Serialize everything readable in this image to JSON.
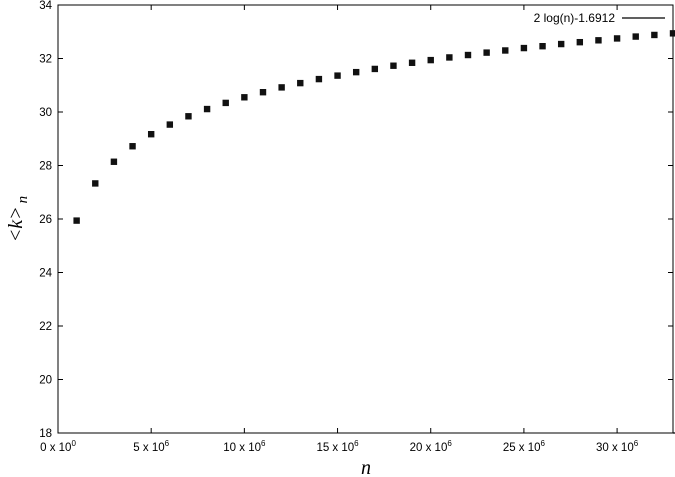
{
  "chart_data": {
    "type": "line",
    "title": "",
    "xlabel": "n",
    "ylabel": "<k>",
    "ylabel_subscript": "n",
    "xlim": [
      0,
      33000000
    ],
    "ylim": [
      18,
      34
    ],
    "y_ticks": [
      18,
      20,
      22,
      24,
      26,
      28,
      30,
      32,
      34
    ],
    "x_ticks": [
      {
        "value": 0,
        "mantissa": "0",
        "exponent": "0"
      },
      {
        "value": 5000000,
        "mantissa": "5",
        "exponent": "6"
      },
      {
        "value": 10000000,
        "mantissa": "10",
        "exponent": "6"
      },
      {
        "value": 15000000,
        "mantissa": "15",
        "exponent": "6"
      },
      {
        "value": 20000000,
        "mantissa": "20",
        "exponent": "6"
      },
      {
        "value": 25000000,
        "mantissa": "25",
        "exponent": "6"
      },
      {
        "value": 30000000,
        "mantissa": "30",
        "exponent": "6"
      }
    ],
    "grid": false,
    "legend_position": "top-right",
    "fit_line": {
      "name": "2 log(n)-1.6912",
      "coef": 2,
      "offset": -1.6912,
      "x_start": 10000000
    },
    "series": [
      {
        "marker": "square",
        "x": [
          1000000,
          2000000,
          3000000,
          4000000,
          5000000,
          6000000,
          7000000,
          8000000,
          9000000,
          10000000,
          11000000,
          12000000,
          13000000,
          14000000,
          15000000,
          16000000,
          17000000,
          18000000,
          19000000,
          20000000,
          21000000,
          22000000,
          23000000,
          24000000,
          25000000,
          26000000,
          27000000,
          28000000,
          29000000,
          30000000,
          31000000,
          32000000,
          33000000
        ],
        "y": [
          25.94,
          27.33,
          28.14,
          28.72,
          29.17,
          29.53,
          29.84,
          30.11,
          30.34,
          30.55,
          30.74,
          30.92,
          31.08,
          31.23,
          31.36,
          31.49,
          31.61,
          31.73,
          31.84,
          31.94,
          32.04,
          32.13,
          32.22,
          32.3,
          32.39,
          32.46,
          32.54,
          32.61,
          32.68,
          32.75,
          32.82,
          32.88,
          32.94
        ]
      }
    ]
  }
}
